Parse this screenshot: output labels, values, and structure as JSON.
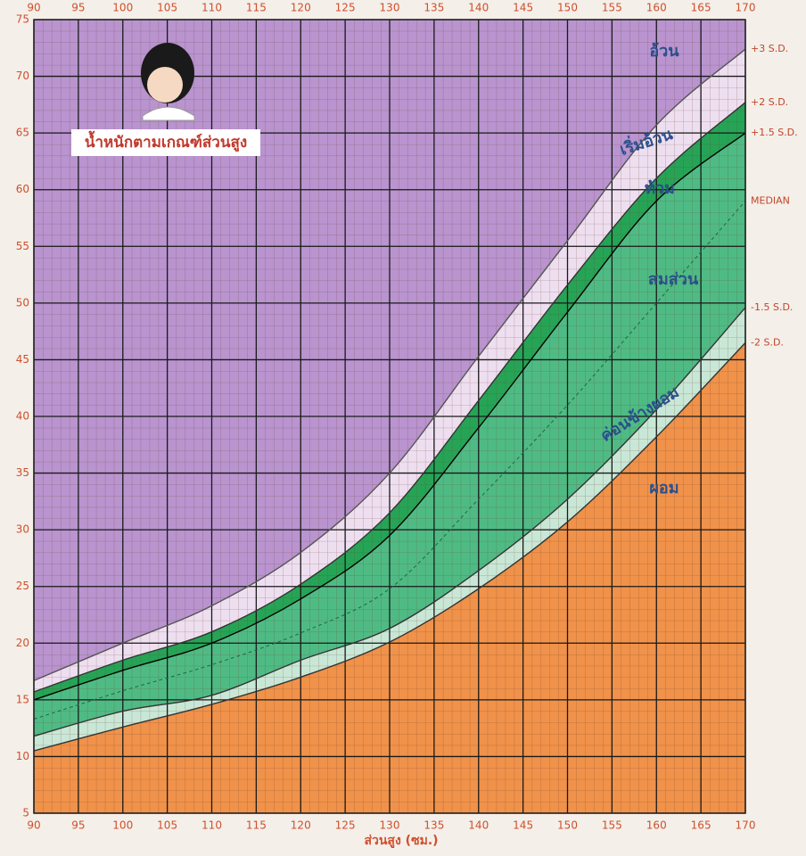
{
  "chart_data": {
    "type": "line",
    "title": "น้ำหนักตามเกณฑ์ส่วนสูง",
    "x_label": "ส่วนสูง (ซม.)",
    "x": [
      90,
      100,
      110,
      120,
      130,
      140,
      150,
      160,
      170
    ],
    "xlim": [
      90,
      170
    ],
    "xticks": [
      90,
      95,
      100,
      105,
      110,
      115,
      120,
      125,
      130,
      135,
      140,
      145,
      150,
      155,
      160,
      165,
      170
    ],
    "ylim": [
      5,
      75
    ],
    "yticks": [
      5,
      10,
      15,
      20,
      25,
      30,
      35,
      40,
      45,
      50,
      55,
      60,
      65,
      70,
      75
    ],
    "grid": true,
    "fill_above": "#b994cf",
    "series": [
      {
        "name": "+3 S.D.",
        "color": "#555555",
        "style": "solid",
        "fill_below": "#eedff0",
        "values": [
          16.7,
          20,
          23.3,
          28,
          35,
          45.3,
          55.5,
          65.7,
          72.4
        ]
      },
      {
        "name": "+2 S.D.",
        "color": "#333333",
        "style": "solid",
        "fill_below": "#26a456",
        "values": [
          15.7,
          18.5,
          21,
          25.2,
          31.5,
          41.4,
          51.6,
          61,
          67.7
        ]
      },
      {
        "name": "+1.5 S.D.",
        "color": "#000000",
        "style": "solid",
        "fill_below": "#4fbb84",
        "values": [
          15,
          17.6,
          20,
          23.9,
          29.5,
          39,
          49.2,
          59,
          65
        ]
      },
      {
        "name": "MEDIAN",
        "color": "#1b6b45",
        "style": "dashed",
        "fill_below": "#4fbb84",
        "values": [
          13.3,
          15.8,
          18.1,
          20.9,
          24.8,
          32.7,
          41,
          50,
          59
        ]
      },
      {
        "name": "-1.5 S.D.",
        "color": "#333333",
        "style": "solid",
        "fill_below": "#c9e7d6",
        "values": [
          11.8,
          14,
          15.4,
          18.5,
          21.3,
          26.4,
          32.7,
          40.6,
          49.6
        ]
      },
      {
        "name": "-2 S.D.",
        "color": "#333333",
        "style": "solid",
        "fill_below": "#f0924a",
        "values": [
          10.5,
          12.6,
          14.6,
          17,
          20.1,
          24.8,
          30.7,
          38.2,
          46.5
        ]
      }
    ],
    "zone_labels": [
      "อ้วน",
      "เริ่มอ้วน",
      "ท้วม",
      "สมส่วน",
      "ค่อนข้างผอม",
      "ผอม"
    ]
  }
}
